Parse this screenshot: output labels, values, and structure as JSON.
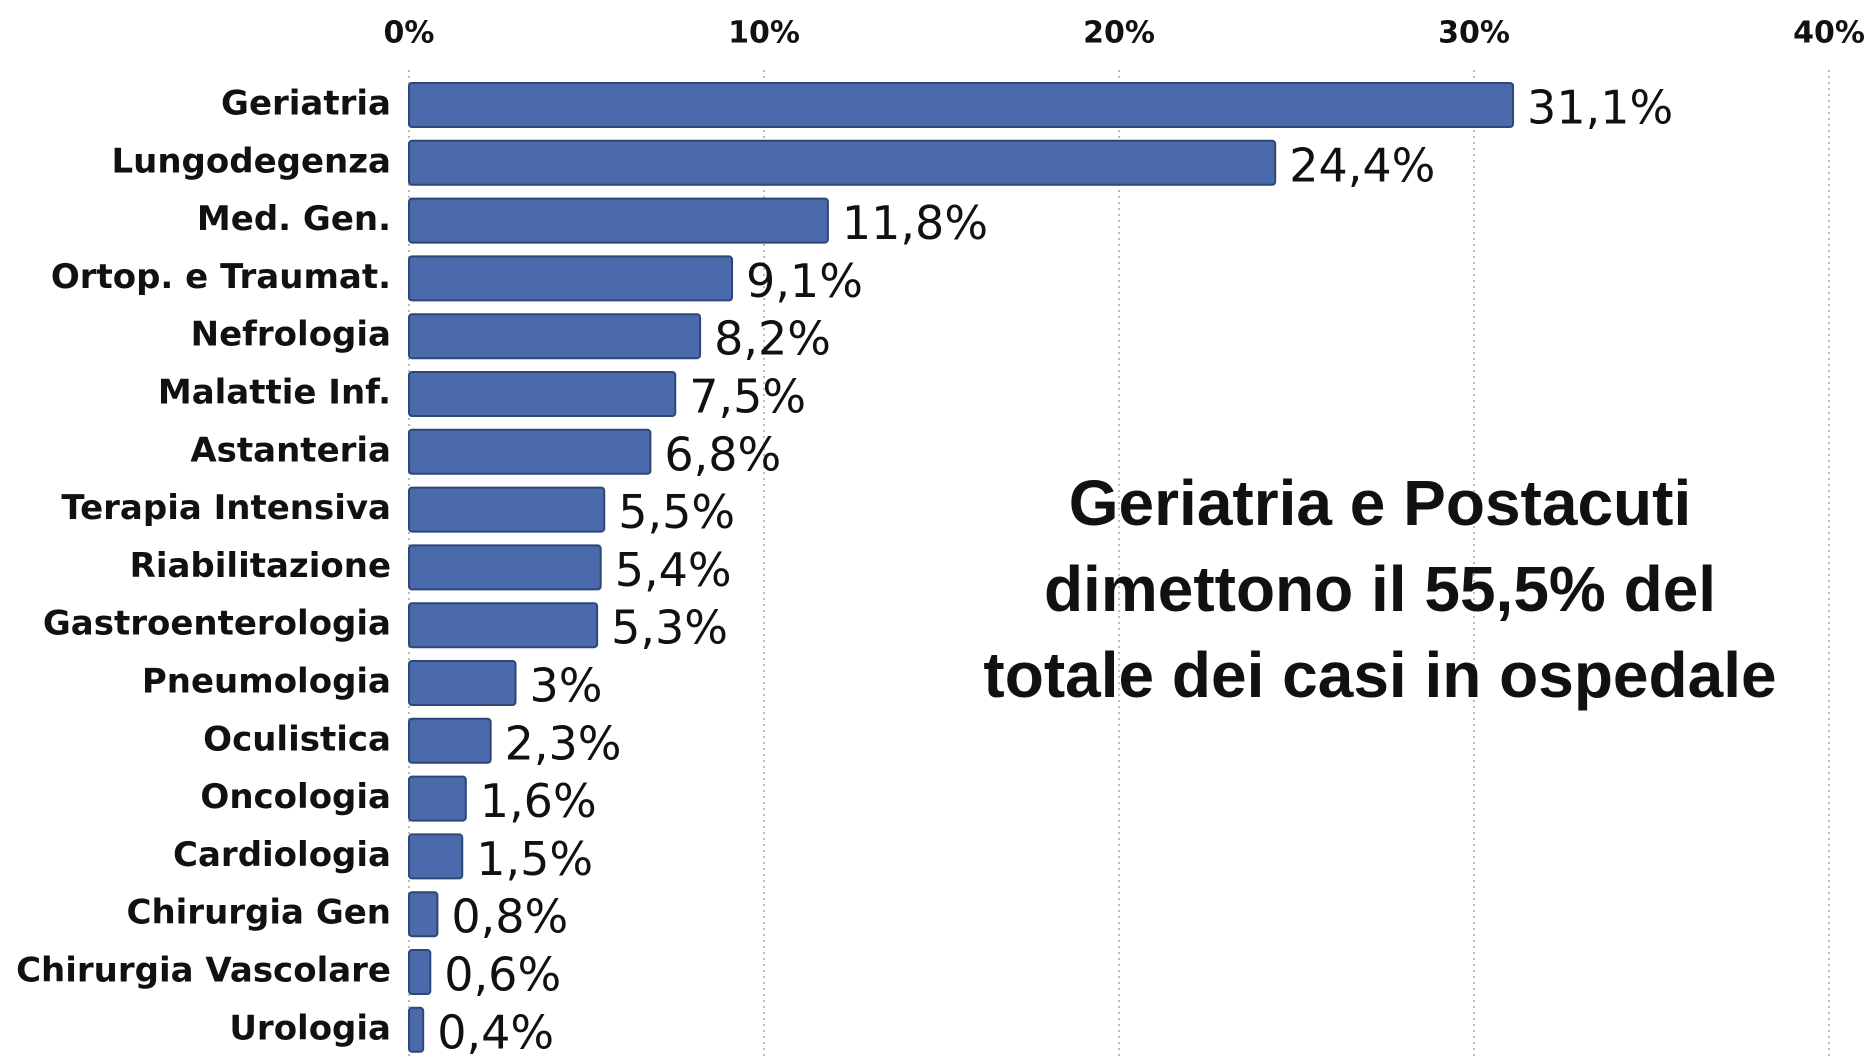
{
  "chart_data": {
    "type": "bar",
    "orientation": "horizontal",
    "categories": [
      "Geriatria",
      "Lungodegenza",
      "Med. Gen.",
      "Ortop. e Traumat.",
      "Nefrologia",
      "Malattie Inf.",
      "Astanteria",
      "Terapia Intensiva",
      "Riabilitazione",
      "Gastroenterologia",
      "Pneumologia",
      "Oculistica",
      "Oncologia",
      "Cardiologia",
      "Chirurgia Gen",
      "Chirurgia Vascolare",
      "Urologia"
    ],
    "values": [
      31.1,
      24.4,
      11.8,
      9.1,
      8.2,
      7.5,
      6.8,
      5.5,
      5.4,
      5.3,
      3,
      2.3,
      1.6,
      1.5,
      0.8,
      0.6,
      0.4
    ],
    "value_labels": [
      "31,1%",
      "24,4%",
      "11,8%",
      "9,1%",
      "8,2%",
      "7,5%",
      "6,8%",
      "5,5%",
      "5,4%",
      "5,3%",
      "3%",
      "2,3%",
      "1,6%",
      "1,5%",
      "0,8%",
      "0,6%",
      "0,4%"
    ],
    "color": "#4a6aab",
    "xlim": [
      0,
      40
    ],
    "xticks": [
      {
        "value": 0,
        "label": "0%"
      },
      {
        "value": 10,
        "label": "10%"
      },
      {
        "value": 20,
        "label": "20%"
      },
      {
        "value": 30,
        "label": "30%"
      },
      {
        "value": 40,
        "label": "40%"
      }
    ],
    "grid": true,
    "annotation": "Geriatria e Postacuti dimettono il 55,5% del totale dei casi in ospedale"
  }
}
